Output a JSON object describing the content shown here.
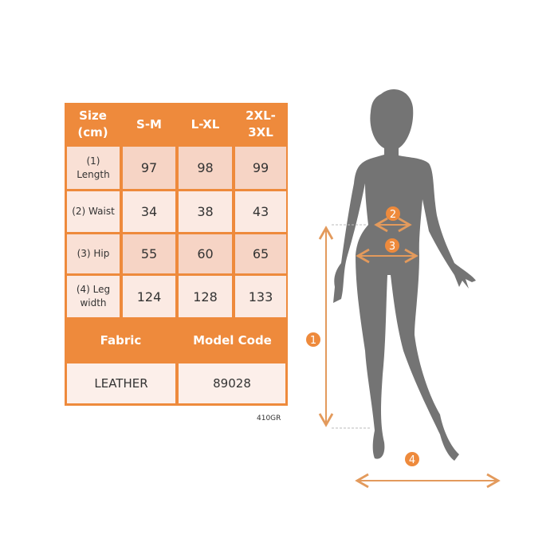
{
  "table": {
    "header": [
      "Size\n(cm)",
      "S-M",
      "L-XL",
      "2XL-\n3XL"
    ],
    "rows": [
      {
        "label": "(1)\nLength",
        "values": [
          "97",
          "98",
          "99"
        ]
      },
      {
        "label": "(2) Waist",
        "values": [
          "34",
          "38",
          "43"
        ]
      },
      {
        "label": "(3) Hip",
        "values": [
          "55",
          "60",
          "65"
        ]
      },
      {
        "label": "(4) Leg\nwidth",
        "values": [
          "124",
          "128",
          "133"
        ]
      }
    ],
    "fabric_header": "Fabric",
    "model_code_header": "Model Code",
    "fabric_value": "LEATHER",
    "model_code_value": "89028"
  },
  "code_label": "410GR",
  "markers": [
    "1",
    "2",
    "3",
    "4"
  ],
  "colors": {
    "accent": "#ee8a3c",
    "silhouette": "#747474"
  }
}
